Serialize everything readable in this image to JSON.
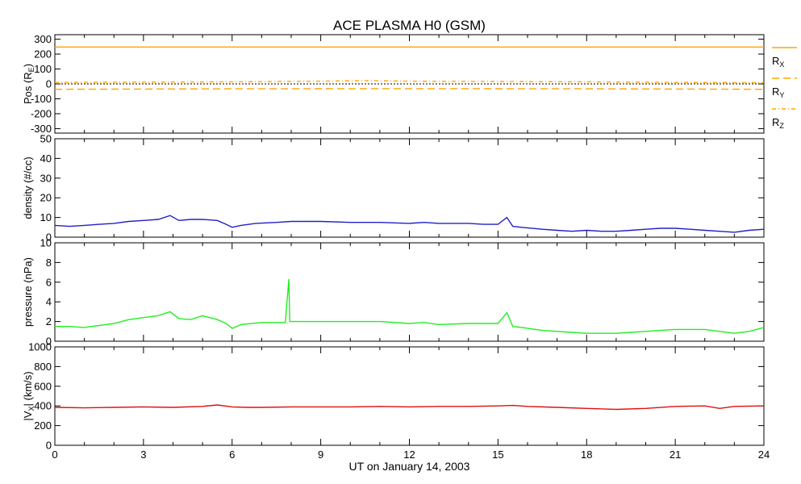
{
  "chart_data": {
    "title": "ACE PLASMA H0 (GSM)",
    "xlabel": "UT on January 14, 2003",
    "xlim": [
      0,
      24
    ],
    "xticks": [
      "0",
      "3",
      "6",
      "9",
      "12",
      "15",
      "18",
      "21",
      "24"
    ],
    "panels": [
      {
        "id": "pos",
        "type": "line",
        "ylabel_main": "Pos (R",
        "ylabel_sub": "E",
        "ylabel_tail": ")",
        "ylim": [
          -330,
          330
        ],
        "yticks": [
          -300,
          -200,
          -100,
          0,
          100,
          200,
          300
        ],
        "ytick_labels": [
          "-300",
          "-200",
          "-100",
          "0",
          "100",
          "200",
          "300"
        ],
        "series": [
          {
            "name": "R",
            "sub": "X",
            "color": "#ffa500",
            "dash": "",
            "x": [
              0,
              24
            ],
            "values": [
              247,
              247
            ]
          },
          {
            "name": "R",
            "sub": "Y",
            "color": "#ffa500",
            "dash": "9,5",
            "x": [
              0,
              6,
              12,
              18,
              24
            ],
            "values": [
              -36,
              -33,
              -32,
              -33,
              -36
            ]
          },
          {
            "name": "R",
            "sub": "Z",
            "color": "#ffa500",
            "dash": "5,3,1,3",
            "x": [
              0,
              3,
              6,
              9,
              10.5,
              12,
              15,
              18,
              21,
              24
            ],
            "values": [
              10,
              12,
              14,
              18,
              22,
              18,
              16,
              14,
              10,
              8
            ]
          }
        ],
        "zero_line": {
          "value": 0,
          "color": "#000000"
        }
      },
      {
        "id": "density",
        "type": "line",
        "ylabel_main": "density (#/cc)",
        "ylim": [
          0,
          50
        ],
        "yticks": [
          0,
          10,
          20,
          30,
          40,
          50
        ],
        "ytick_labels": [
          "0",
          "10",
          "20",
          "30",
          "40",
          "50"
        ],
        "series": [
          {
            "name": "density",
            "color": "#2020c8",
            "x": [
              0,
              0.5,
              1,
              1.5,
              2,
              2.5,
              3,
              3.5,
              3.9,
              4.2,
              4.6,
              5,
              5.5,
              5.8,
              6,
              6.3,
              6.8,
              7.5,
              8,
              9,
              10,
              11,
              12,
              12.5,
              13,
              14,
              14.5,
              15,
              15.3,
              15.5,
              15.8,
              16.5,
              17,
              17.5,
              18,
              18.5,
              19,
              19.5,
              20,
              20.5,
              21,
              21.5,
              22,
              22.5,
              23,
              23.5,
              24
            ],
            "values": [
              6,
              5.5,
              6,
              6.5,
              7,
              8,
              8.5,
              9,
              11,
              8.5,
              9,
              9,
              8.5,
              6.5,
              5,
              6,
              7,
              7.5,
              8,
              8,
              7.5,
              7.5,
              7,
              7.5,
              7,
              7,
              6.5,
              6.5,
              10,
              5.5,
              5,
              4,
              3.5,
              3,
              3.5,
              3,
              3,
              3.5,
              4,
              4.5,
              4.5,
              4,
              3.5,
              3,
              2.5,
              3.5,
              4
            ]
          }
        ]
      },
      {
        "id": "pressure",
        "type": "line",
        "ylabel_main": "pressure (nPa)",
        "ylim": [
          0,
          10
        ],
        "yticks": [
          0,
          2,
          4,
          6,
          8,
          10
        ],
        "ytick_labels": [
          "0",
          "2",
          "4",
          "6",
          "8",
          "10"
        ],
        "series": [
          {
            "name": "pressure",
            "color": "#22ee22",
            "x": [
              0,
              0.5,
              1,
              1.5,
              2,
              2.5,
              3,
              3.5,
              3.9,
              4.2,
              4.6,
              5,
              5.5,
              5.8,
              6,
              6.3,
              7,
              7.8,
              7.92,
              7.95,
              8.1,
              9,
              10,
              11,
              12,
              12.5,
              13,
              14,
              14.5,
              15,
              15.3,
              15.5,
              15.8,
              16.5,
              17,
              17.5,
              18,
              18.5,
              19,
              19.5,
              20,
              20.5,
              21,
              21.5,
              22,
              22.5,
              23,
              23.5,
              24
            ],
            "values": [
              1.5,
              1.5,
              1.4,
              1.6,
              1.8,
              2.2,
              2.4,
              2.6,
              3,
              2.3,
              2.2,
              2.6,
              2.2,
              1.8,
              1.3,
              1.7,
              1.9,
              1.9,
              6.3,
              2,
              2,
              2,
              2,
              2,
              1.8,
              1.9,
              1.7,
              1.8,
              1.8,
              1.8,
              2.9,
              1.5,
              1.4,
              1.1,
              1,
              0.9,
              0.8,
              0.8,
              0.8,
              0.9,
              1,
              1.1,
              1.2,
              1.2,
              1.2,
              1,
              0.8,
              1,
              1.4
            ]
          }
        ]
      },
      {
        "id": "vx",
        "type": "line",
        "ylabel_main": "|V",
        "ylabel_sub": "X",
        "ylabel_tail": "| (km/s)",
        "ylim": [
          0,
          1000
        ],
        "yticks": [
          0,
          200,
          400,
          600,
          800,
          1000
        ],
        "ytick_labels": [
          "0",
          "200",
          "400",
          "600",
          "800",
          "1000"
        ],
        "series": [
          {
            "name": "|Vx|",
            "color": "#dd1010",
            "x": [
              0,
              1,
              2,
              3,
              4,
              5,
              5.5,
              6,
              6.5,
              7,
              8,
              9,
              10,
              11,
              12,
              13,
              14,
              15,
              15.5,
              16,
              17,
              18,
              19,
              20,
              21,
              22,
              22.5,
              23,
              24
            ],
            "values": [
              385,
              380,
              385,
              390,
              385,
              395,
              410,
              390,
              385,
              385,
              390,
              390,
              390,
              395,
              390,
              395,
              395,
              400,
              405,
              395,
              385,
              375,
              365,
              375,
              395,
              400,
              375,
              395,
              400
            ]
          }
        ]
      }
    ]
  }
}
